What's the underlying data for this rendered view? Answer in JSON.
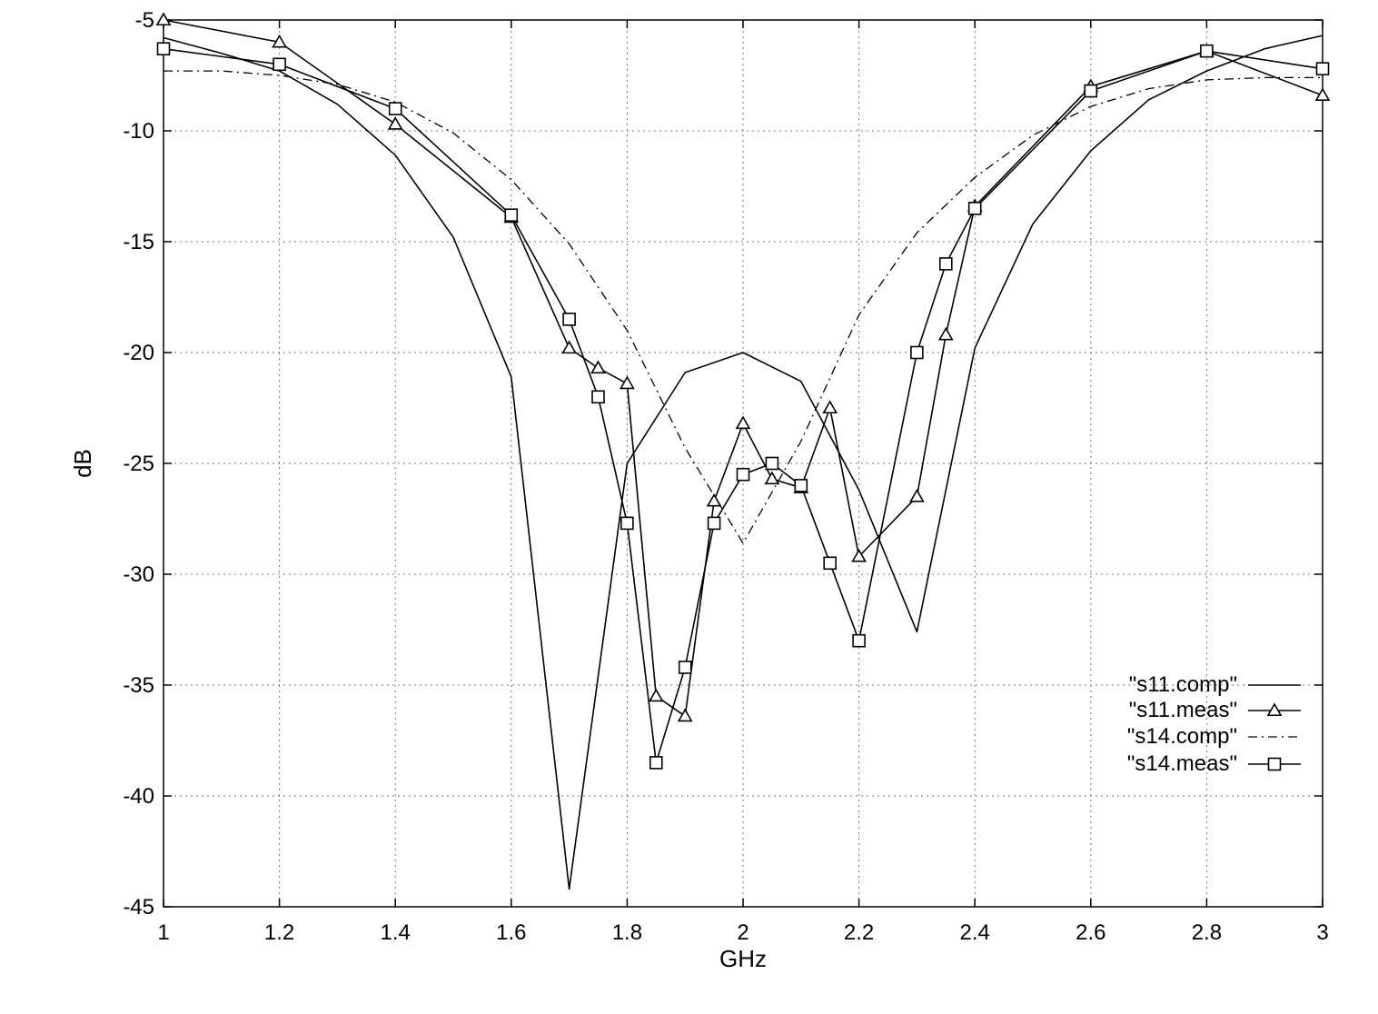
{
  "chart_data": {
    "type": "line",
    "xlabel": "GHz",
    "ylabel": "dB",
    "xlim": [
      1,
      3
    ],
    "ylim": [
      -45,
      -5
    ],
    "x_ticks": [
      "1",
      "1.2",
      "1.4",
      "1.6",
      "1.8",
      "2",
      "2.2",
      "2.4",
      "2.6",
      "2.8",
      "3"
    ],
    "x_tick_values": [
      1,
      1.2,
      1.4,
      1.6,
      1.8,
      2,
      2.2,
      2.4,
      2.6,
      2.8,
      3
    ],
    "y_ticks": [
      "-5",
      "-10",
      "-15",
      "-20",
      "-25",
      "-30",
      "-35",
      "-40",
      "-45"
    ],
    "y_tick_values": [
      -5,
      -10,
      -15,
      -20,
      -25,
      -30,
      -35,
      -40,
      -45
    ],
    "grid": true,
    "legend_position": "bottom-right",
    "series": [
      {
        "name": "\"s11.comp\"",
        "style": "solid",
        "marker": "none",
        "x": [
          1.0,
          1.1,
          1.2,
          1.3,
          1.4,
          1.5,
          1.6,
          1.7,
          1.8,
          1.9,
          2.0,
          2.1,
          2.2,
          2.3,
          2.4,
          2.5,
          2.6,
          2.7,
          2.8,
          2.9,
          3.0
        ],
        "y": [
          -5.8,
          -6.5,
          -7.3,
          -8.8,
          -11.1,
          -14.8,
          -21.1,
          -44.2,
          -25.0,
          -20.9,
          -20.0,
          -21.3,
          -26.2,
          -32.6,
          -19.8,
          -14.2,
          -10.9,
          -8.6,
          -7.3,
          -6.3,
          -5.7
        ]
      },
      {
        "name": "\"s11.meas\"",
        "style": "solid",
        "marker": "triangle",
        "x": [
          1.0,
          1.2,
          1.4,
          1.6,
          1.7,
          1.75,
          1.8,
          1.85,
          1.9,
          1.95,
          2.0,
          2.05,
          2.1,
          2.15,
          2.2,
          2.3,
          2.35,
          2.4,
          2.6,
          2.8,
          3.0
        ],
        "y": [
          -5.0,
          -6.0,
          -9.7,
          -13.9,
          -19.8,
          -20.7,
          -21.4,
          -35.5,
          -36.4,
          -26.7,
          -23.2,
          -25.7,
          -26.1,
          -22.5,
          -29.2,
          -26.5,
          -19.2,
          -13.4,
          -8.0,
          -6.4,
          -8.4
        ]
      },
      {
        "name": "\"s14.comp\"",
        "style": "dash-dot",
        "marker": "none",
        "x": [
          1.0,
          1.1,
          1.2,
          1.3,
          1.4,
          1.5,
          1.6,
          1.7,
          1.8,
          1.9,
          2.0,
          2.1,
          2.2,
          2.3,
          2.4,
          2.5,
          2.6,
          2.7,
          2.8,
          2.9,
          3.0
        ],
        "y": [
          -7.3,
          -7.3,
          -7.5,
          -7.9,
          -8.7,
          -10.1,
          -12.2,
          -15.1,
          -19.0,
          -24.3,
          -28.6,
          -24.0,
          -18.3,
          -14.6,
          -12.1,
          -10.2,
          -8.9,
          -8.1,
          -7.7,
          -7.6,
          -7.6
        ]
      },
      {
        "name": "\"s14.meas\"",
        "style": "solid",
        "marker": "square",
        "x": [
          1.0,
          1.2,
          1.4,
          1.6,
          1.7,
          1.75,
          1.8,
          1.85,
          1.9,
          1.95,
          2.0,
          2.05,
          2.1,
          2.15,
          2.2,
          2.3,
          2.35,
          2.4,
          2.6,
          2.8,
          3.0
        ],
        "y": [
          -6.3,
          -7.0,
          -9.0,
          -13.8,
          -18.5,
          -22.0,
          -27.7,
          -38.5,
          -34.2,
          -27.7,
          -25.5,
          -25.0,
          -26.0,
          -29.5,
          -33.0,
          -20.0,
          -16.0,
          -13.5,
          -8.2,
          -6.4,
          -7.2
        ]
      }
    ]
  }
}
